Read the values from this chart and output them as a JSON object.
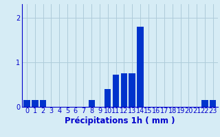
{
  "categories": [
    0,
    1,
    2,
    3,
    4,
    5,
    6,
    7,
    8,
    9,
    10,
    11,
    12,
    13,
    14,
    15,
    16,
    17,
    18,
    19,
    20,
    21,
    22,
    23
  ],
  "values": [
    0.15,
    0.15,
    0.15,
    0.0,
    0.0,
    0.0,
    0.0,
    0.0,
    0.15,
    0.0,
    0.4,
    0.72,
    0.75,
    0.75,
    1.8,
    0.0,
    0.0,
    0.0,
    0.0,
    0.0,
    0.0,
    0.0,
    0.15,
    0.15
  ],
  "bar_color": "#0033cc",
  "background_color": "#d6ecf5",
  "grid_color": "#aeccda",
  "axis_label_color": "#0000cc",
  "xlabel": "Précipitations 1h ( mm )",
  "ylim": [
    0,
    2.3
  ],
  "yticks": [
    0,
    1,
    2
  ],
  "xlabel_fontsize": 8.5,
  "tick_fontsize": 7,
  "bar_width": 0.8
}
